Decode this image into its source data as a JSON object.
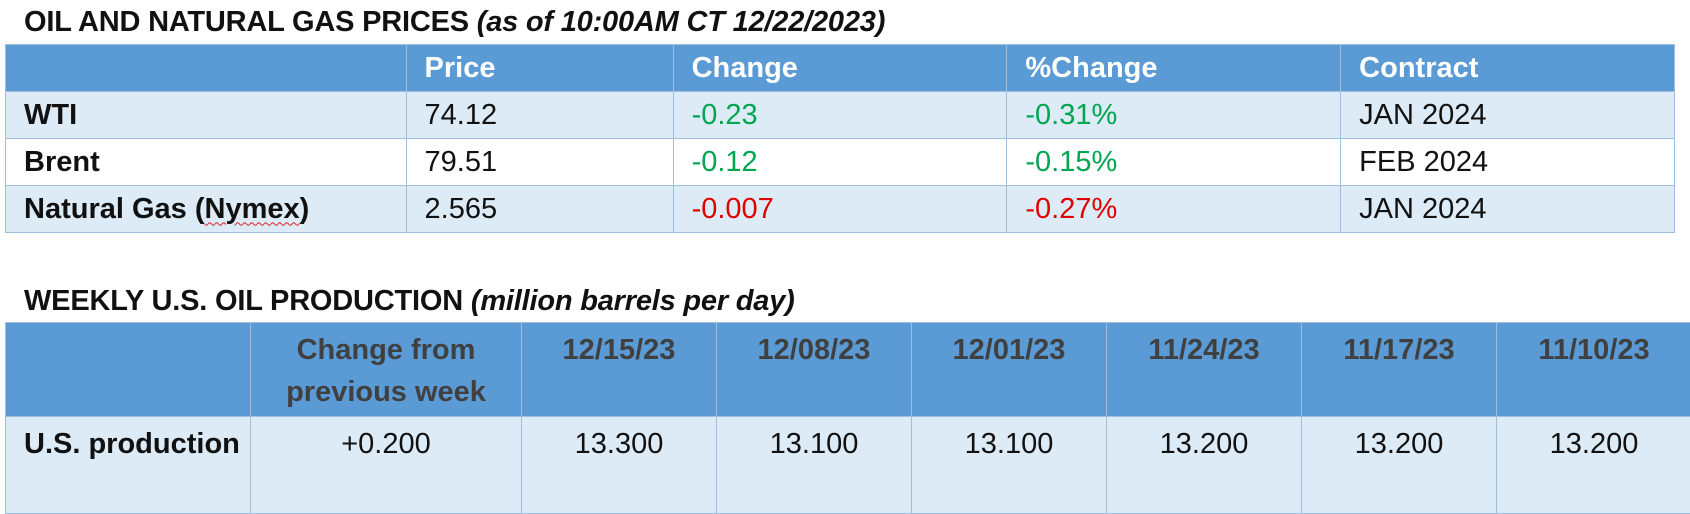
{
  "section1": {
    "title": "OIL AND NATURAL GAS PRICES",
    "subtitle": "(as of 10:00AM CT 12/22/2023)",
    "headers": [
      "",
      "Price",
      "Change",
      "%Change",
      "Contract"
    ],
    "rows": [
      {
        "name": "WTI",
        "price": "74.12",
        "change": "-0.23",
        "pct_change": "-0.31%",
        "contract": "JAN 2024",
        "change_color": "#00a650"
      },
      {
        "name": "Brent",
        "price": "79.51",
        "change": "-0.12",
        "pct_change": "-0.15%",
        "contract": "FEB 2024",
        "change_color": "#00a650"
      },
      {
        "name_pre": "Natural Gas (",
        "name_squiggle": "Nymex",
        "name_post": ")",
        "price": "2.565",
        "change": "-0.007",
        "pct_change": "-0.27%",
        "contract": "JAN 2024",
        "change_color": "#e00000"
      }
    ]
  },
  "section2": {
    "title": "WEEKLY U.S. OIL PRODUCTION",
    "subtitle": "(million barrels per day)",
    "headers": [
      "",
      "Change from previous week",
      "12/15/23",
      "12/08/23",
      "12/01/23",
      "11/24/23",
      "11/17/23",
      "11/10/23"
    ],
    "row": {
      "name": "U.S. production",
      "change": "+0.200",
      "values": [
        "13.300",
        "13.100",
        "13.100",
        "13.200",
        "13.200",
        "13.200"
      ]
    }
  },
  "colors": {
    "header_blue": "#5b9bd5",
    "band_light": "#ddebf7",
    "negative_green": "#00a650",
    "negative_red": "#e00000"
  }
}
